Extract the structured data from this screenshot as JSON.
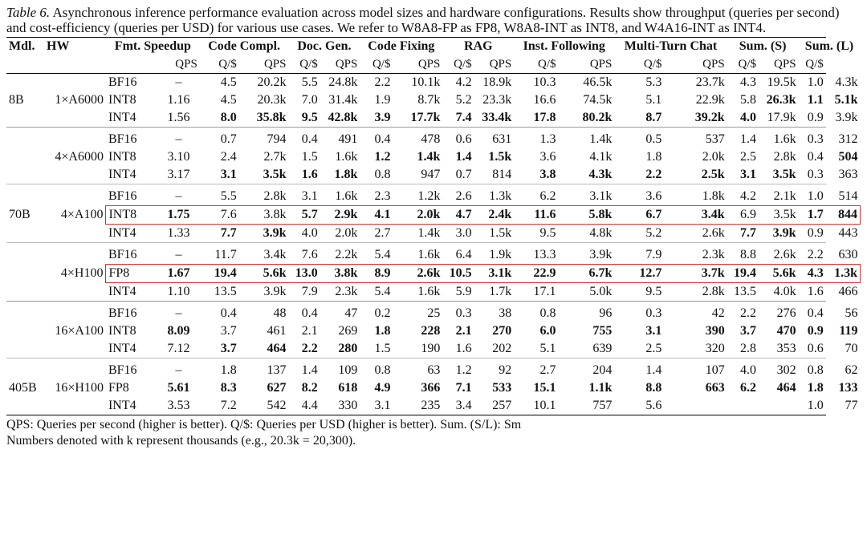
{
  "caption": {
    "label": "Table 6.",
    "text": "Asynchronous inference performance evaluation across model sizes and hardware configurations. Results show throughput (queries per second) and cost-efficiency (queries per USD) for various use cases. We refer to W8A8-FP as FP8, W8A8-INT as INT8, and W4A16-INT as INT4."
  },
  "table": {
    "headers": {
      "model": "Mdl.",
      "hardware": "HW",
      "format_speedup": "Fmt. Speedup",
      "use_cases": [
        "Code Compl.",
        "Doc. Gen.",
        "Code Fixing",
        "RAG",
        "Inst. Following",
        "Multi-Turn Chat",
        "Sum. (S)",
        "Sum. (L)"
      ],
      "metric_qps": "QPS",
      "metric_qusd": "Q/$"
    },
    "groups": [
      {
        "model": "8B",
        "hw": "1×A6000",
        "highlight": [],
        "rows": [
          {
            "fmt": "BF16",
            "speedup": "–",
            "cells": [
              "4.5",
              "20.2k",
              "5.5",
              "24.8k",
              "2.2",
              "10.1k",
              "4.2",
              "18.9k",
              "10.3",
              "46.5k",
              "5.3",
              "23.7k",
              "4.3",
              "19.5k",
              "1.0",
              "4.3k"
            ],
            "bold": []
          },
          {
            "fmt": "INT8",
            "speedup": "1.16",
            "cells": [
              "4.5",
              "20.3k",
              "7.0",
              "31.4k",
              "1.9",
              "8.7k",
              "5.2",
              "23.3k",
              "16.6",
              "74.5k",
              "5.1",
              "22.9k",
              "5.8",
              "26.3k",
              "1.1",
              "5.1k"
            ],
            "bold": [
              14,
              15,
              16,
              17
            ]
          },
          {
            "fmt": "INT4",
            "speedup": "1.56",
            "cells": [
              "8.0",
              "35.8k",
              "9.5",
              "42.8k",
              "3.9",
              "17.7k",
              "7.4",
              "33.4k",
              "17.8",
              "80.2k",
              "8.7",
              "39.2k",
              "4.0",
              "17.9k",
              "0.9",
              "3.9k"
            ],
            "bold": [
              1,
              2,
              3,
              4,
              5,
              6,
              7,
              8,
              9,
              10,
              11,
              12,
              13
            ]
          }
        ]
      },
      {
        "model": "",
        "hw": "4×A6000",
        "highlight": [],
        "rows": [
          {
            "fmt": "BF16",
            "speedup": "–",
            "cells": [
              "0.7",
              "794",
              "0.4",
              "491",
              "0.4",
              "478",
              "0.6",
              "631",
              "1.3",
              "1.4k",
              "0.5",
              "537",
              "1.4",
              "1.6k",
              "0.3",
              "312"
            ],
            "bold": []
          },
          {
            "fmt": "INT8",
            "speedup": "3.10",
            "cells": [
              "2.4",
              "2.7k",
              "1.5",
              "1.6k",
              "1.2",
              "1.4k",
              "1.4",
              "1.5k",
              "3.6",
              "4.1k",
              "1.8",
              "2.0k",
              "2.5",
              "2.8k",
              "0.4",
              "504"
            ],
            "bold": [
              5,
              6,
              7,
              8,
              16,
              17
            ]
          },
          {
            "fmt": "INT4",
            "speedup": "3.17",
            "cells": [
              "3.1",
              "3.5k",
              "1.6",
              "1.8k",
              "0.8",
              "947",
              "0.7",
              "814",
              "3.8",
              "4.3k",
              "2.2",
              "2.5k",
              "3.1",
              "3.5k",
              "0.3",
              "363"
            ],
            "bold": [
              1,
              2,
              3,
              4,
              9,
              10,
              11,
              12,
              13,
              14
            ]
          }
        ]
      },
      {
        "model": "70B",
        "hw": "4×A100",
        "highlight": [
          1
        ],
        "rows": [
          {
            "fmt": "BF16",
            "speedup": "–",
            "cells": [
              "5.5",
              "2.8k",
              "3.1",
              "1.6k",
              "2.3",
              "1.2k",
              "2.6",
              "1.3k",
              "6.2",
              "3.1k",
              "3.6",
              "1.8k",
              "4.2",
              "2.1k",
              "1.0",
              "514"
            ],
            "bold": []
          },
          {
            "fmt": "INT8",
            "speedup": "1.75",
            "cells": [
              "7.6",
              "3.8k",
              "5.7",
              "2.9k",
              "4.1",
              "2.0k",
              "4.7",
              "2.4k",
              "11.6",
              "5.8k",
              "6.7",
              "3.4k",
              "6.9",
              "3.5k",
              "1.7",
              "844"
            ],
            "bold": [
              0,
              3,
              4,
              5,
              6,
              7,
              8,
              9,
              10,
              11,
              12,
              15,
              16
            ]
          },
          {
            "fmt": "INT4",
            "speedup": "1.33",
            "cells": [
              "7.7",
              "3.9k",
              "4.0",
              "2.0k",
              "2.7",
              "1.4k",
              "3.0",
              "1.5k",
              "9.5",
              "4.8k",
              "5.2",
              "2.6k",
              "7.7",
              "3.9k",
              "0.9",
              "443"
            ],
            "bold": [
              1,
              2,
              13,
              14
            ]
          }
        ]
      },
      {
        "model": "",
        "hw": "4×H100",
        "highlight": [
          1
        ],
        "rows": [
          {
            "fmt": "BF16",
            "speedup": "–",
            "cells": [
              "11.7",
              "3.4k",
              "7.6",
              "2.2k",
              "5.4",
              "1.6k",
              "6.4",
              "1.9k",
              "13.3",
              "3.9k",
              "7.9",
              "2.3k",
              "8.8",
              "2.6k",
              "2.2",
              "630"
            ],
            "bold": []
          },
          {
            "fmt": "FP8",
            "speedup": "1.67",
            "cells": [
              "19.4",
              "5.6k",
              "13.0",
              "3.8k",
              "8.9",
              "2.6k",
              "10.5",
              "3.1k",
              "22.9",
              "6.7k",
              "12.7",
              "3.7k",
              "19.4",
              "5.6k",
              "4.3",
              "1.3k"
            ],
            "bold": [
              0,
              1,
              2,
              3,
              4,
              5,
              6,
              7,
              8,
              9,
              10,
              11,
              12,
              13,
              14,
              15,
              16
            ]
          },
          {
            "fmt": "INT4",
            "speedup": "1.10",
            "cells": [
              "13.5",
              "3.9k",
              "7.9",
              "2.3k",
              "5.4",
              "1.6k",
              "5.9",
              "1.7k",
              "17.1",
              "5.0k",
              "9.5",
              "2.8k",
              "13.5",
              "4.0k",
              "1.6",
              "466"
            ],
            "bold": []
          }
        ]
      },
      {
        "model": "",
        "hw": "16×A100",
        "highlight": [],
        "rows": [
          {
            "fmt": "BF16",
            "speedup": "–",
            "cells": [
              "0.4",
              "48",
              "0.4",
              "47",
              "0.2",
              "25",
              "0.3",
              "38",
              "0.8",
              "96",
              "0.3",
              "42",
              "2.2",
              "276",
              "0.4",
              "56"
            ],
            "bold": []
          },
          {
            "fmt": "INT8",
            "speedup": "8.09",
            "cells": [
              "3.7",
              "461",
              "2.1",
              "269",
              "1.8",
              "228",
              "2.1",
              "270",
              "6.0",
              "755",
              "3.1",
              "390",
              "3.7",
              "470",
              "0.9",
              "119"
            ],
            "bold": [
              0,
              5,
              6,
              7,
              8,
              9,
              10,
              11,
              12,
              13,
              14,
              15,
              16
            ]
          },
          {
            "fmt": "INT4",
            "speedup": "7.12",
            "cells": [
              "3.7",
              "464",
              "2.2",
              "280",
              "1.5",
              "190",
              "1.6",
              "202",
              "5.1",
              "639",
              "2.5",
              "320",
              "2.8",
              "353",
              "0.6",
              "70"
            ],
            "bold": [
              1,
              2,
              3,
              4
            ]
          }
        ]
      },
      {
        "model": "405B",
        "hw": "16×H100",
        "highlight": [],
        "rows": [
          {
            "fmt": "BF16",
            "speedup": "–",
            "cells": [
              "1.8",
              "137",
              "1.4",
              "109",
              "0.8",
              "63",
              "1.2",
              "92",
              "2.7",
              "204",
              "1.4",
              "107",
              "4.0",
              "302",
              "0.8",
              "62"
            ],
            "bold": []
          },
          {
            "fmt": "FP8",
            "speedup": "5.61",
            "cells": [
              "8.3",
              "627",
              "8.2",
              "618",
              "4.9",
              "366",
              "7.1",
              "533",
              "15.1",
              "1.1k",
              "8.8",
              "663",
              "6.2",
              "464",
              "1.8",
              "133"
            ],
            "bold": [
              0,
              1,
              2,
              3,
              4,
              5,
              6,
              7,
              8,
              9,
              10,
              11,
              12,
              13,
              14,
              15,
              16
            ]
          },
          {
            "fmt": "INT4",
            "speedup": "3.53",
            "cells": [
              "7.2",
              "542",
              "4.4",
              "330",
              "3.1",
              "235",
              "3.4",
              "257",
              "10.1",
              "757",
              "5.6",
              "",
              "",
              "",
              "1.0",
              "77"
            ],
            "bold": []
          }
        ]
      }
    ]
  },
  "footnote": {
    "line1": "QPS: Queries per second (higher is better). Q/$: Queries per USD (higher is better). Sum. (S/L): Sm",
    "line2": "Numbers denoted with k represent thousands (e.g., 20.3k = 20,300)."
  }
}
